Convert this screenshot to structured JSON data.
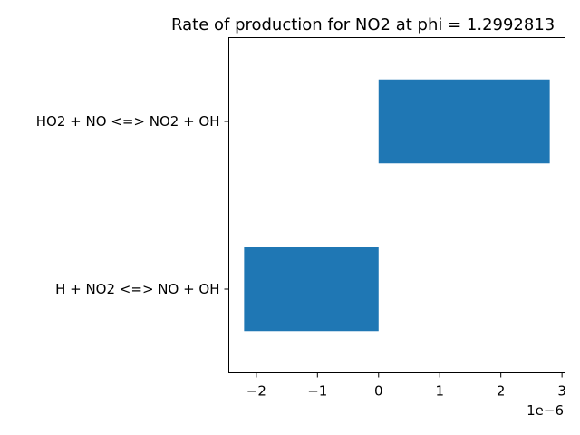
{
  "chart_data": {
    "type": "bar",
    "orientation": "horizontal",
    "title": "Rate of production for NO2 at phi = 1.2992813",
    "categories": [
      "H + NO2 <=> NO + OH",
      "HO2 + NO <=> NO2 + OH"
    ],
    "values": [
      -2.2e-06,
      2.8e-06
    ],
    "xlim": [
      -2.45e-06,
      3.05e-06
    ],
    "xticks": [
      -2,
      -1,
      0,
      1,
      2,
      3
    ],
    "xtick_labels": [
      "−2",
      "−1",
      "0",
      "1",
      "2",
      "3"
    ],
    "x_offset_label": "1e−6",
    "xlabel": "",
    "ylabel": "",
    "grid": false,
    "bar_color": "#1f77b4"
  }
}
